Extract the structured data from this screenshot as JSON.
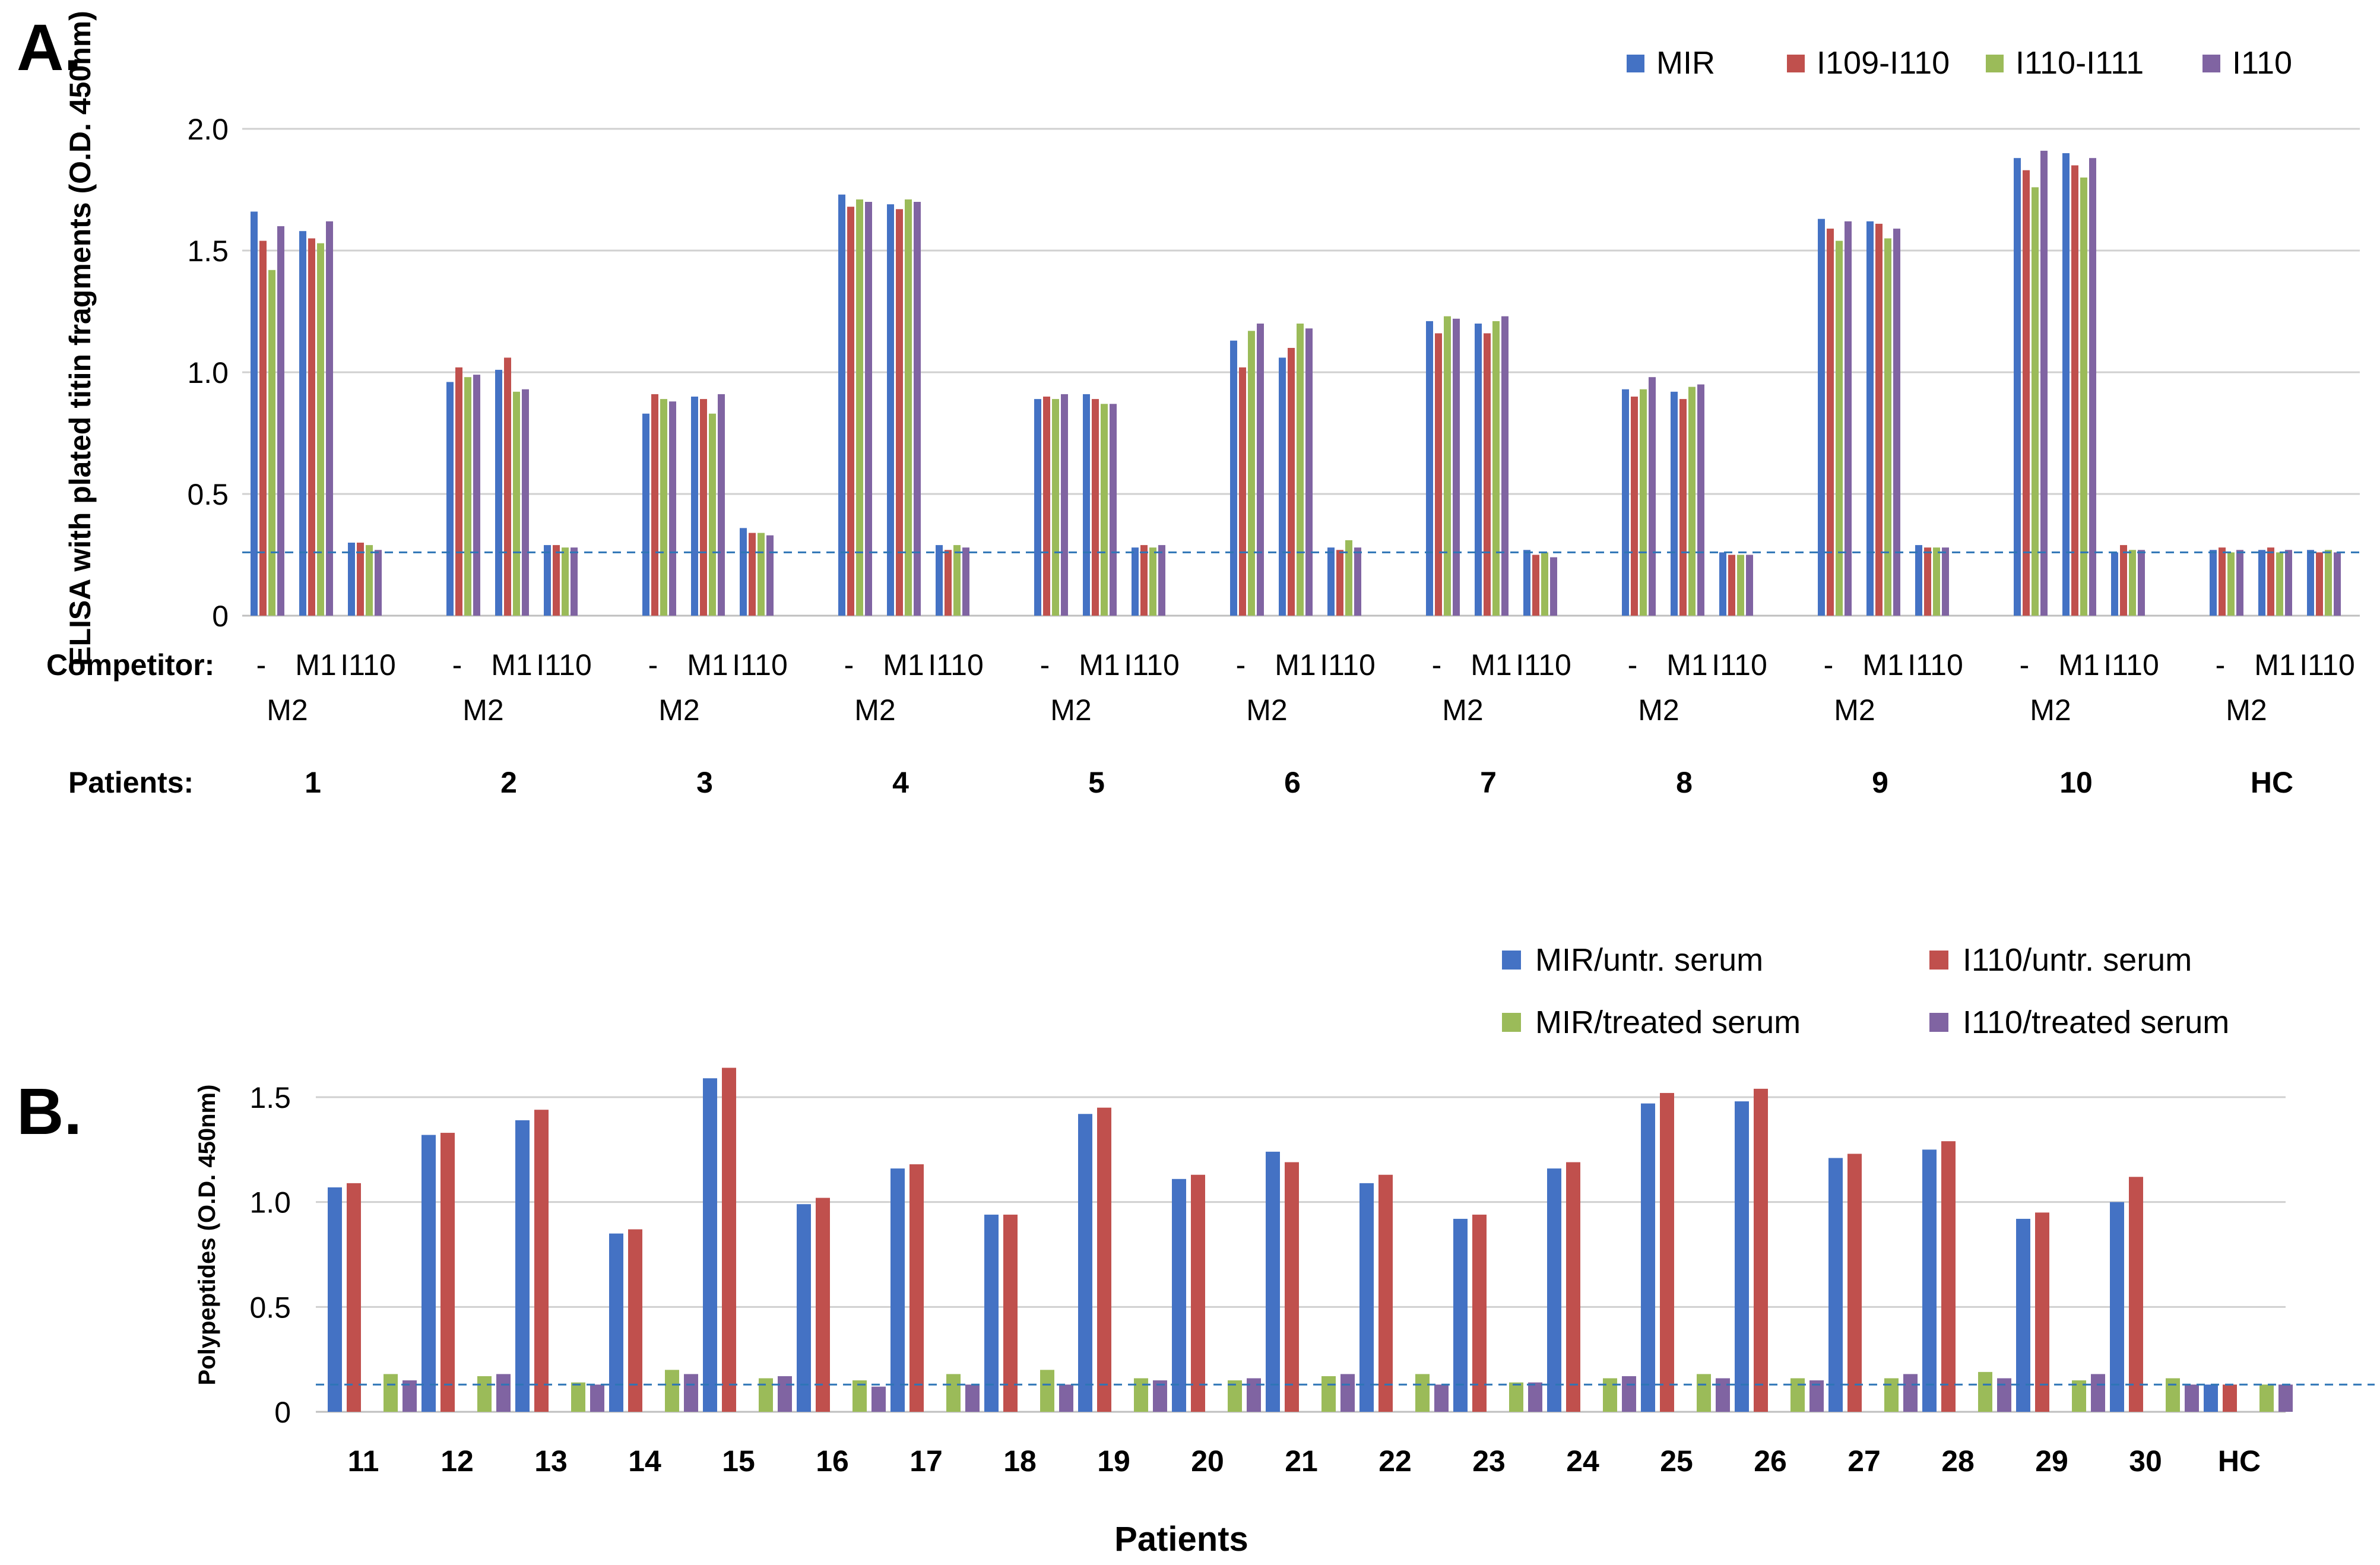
{
  "chart_data": [
    {
      "panel": "A.",
      "type": "bar",
      "ylabel": "ELISA with plated titin fragments (O.D. 450nm)",
      "ylim": [
        0,
        2.0
      ],
      "yticks": [
        "2.0",
        "1.5",
        "1.0",
        "0.5",
        "0"
      ],
      "grid": true,
      "legend_position": "top-right",
      "cutoff": 0.26,
      "competitor_label": "Competitor:",
      "patients_label": "Patients:",
      "competitor_top": [
        "-",
        "M1",
        "I110"
      ],
      "competitor_bottom": "M2",
      "series": [
        {
          "name": "MIR",
          "color": "#4472C4"
        },
        {
          "name": "I109-I110",
          "color": "#C0504D"
        },
        {
          "name": "I110-I111",
          "color": "#9BBB59"
        },
        {
          "name": "I110",
          "color": "#8064A2"
        }
      ],
      "groups": [
        {
          "patient": "1",
          "bars": [
            [
              1.66,
              1.54,
              1.42,
              1.6
            ],
            [
              1.58,
              1.55,
              1.53,
              1.62
            ],
            [
              0.3,
              0.3,
              0.29,
              0.27
            ]
          ]
        },
        {
          "patient": "2",
          "bars": [
            [
              0.96,
              1.02,
              0.98,
              0.99
            ],
            [
              1.01,
              1.06,
              0.92,
              0.93
            ],
            [
              0.29,
              0.29,
              0.28,
              0.28
            ]
          ]
        },
        {
          "patient": "3",
          "bars": [
            [
              0.83,
              0.91,
              0.89,
              0.88
            ],
            [
              0.9,
              0.89,
              0.83,
              0.91
            ],
            [
              0.36,
              0.34,
              0.34,
              0.33
            ]
          ]
        },
        {
          "patient": "4",
          "bars": [
            [
              1.73,
              1.68,
              1.71,
              1.7
            ],
            [
              1.69,
              1.67,
              1.71,
              1.7
            ],
            [
              0.29,
              0.27,
              0.29,
              0.28
            ]
          ]
        },
        {
          "patient": "5",
          "bars": [
            [
              0.89,
              0.9,
              0.89,
              0.91
            ],
            [
              0.91,
              0.89,
              0.87,
              0.87
            ],
            [
              0.28,
              0.29,
              0.28,
              0.29
            ]
          ]
        },
        {
          "patient": "6",
          "bars": [
            [
              1.13,
              1.02,
              1.17,
              1.2
            ],
            [
              1.06,
              1.1,
              1.2,
              1.18
            ],
            [
              0.28,
              0.27,
              0.31,
              0.28
            ]
          ]
        },
        {
          "patient": "7",
          "bars": [
            [
              1.21,
              1.16,
              1.23,
              1.22
            ],
            [
              1.2,
              1.16,
              1.21,
              1.23
            ],
            [
              0.27,
              0.25,
              0.26,
              0.24
            ]
          ]
        },
        {
          "patient": "8",
          "bars": [
            [
              0.93,
              0.9,
              0.93,
              0.98
            ],
            [
              0.92,
              0.89,
              0.94,
              0.95
            ],
            [
              0.26,
              0.25,
              0.25,
              0.25
            ]
          ]
        },
        {
          "patient": "9",
          "bars": [
            [
              1.63,
              1.59,
              1.54,
              1.62
            ],
            [
              1.62,
              1.61,
              1.55,
              1.59
            ],
            [
              0.29,
              0.28,
              0.28,
              0.28
            ]
          ]
        },
        {
          "patient": "10",
          "bars": [
            [
              1.88,
              1.83,
              1.76,
              1.91
            ],
            [
              1.9,
              1.85,
              1.8,
              1.88
            ],
            [
              0.26,
              0.29,
              0.27,
              0.27
            ]
          ]
        },
        {
          "patient": "HC",
          "bars": [
            [
              0.27,
              0.28,
              0.26,
              0.27
            ],
            [
              0.27,
              0.28,
              0.26,
              0.27
            ],
            [
              0.27,
              0.26,
              0.27,
              0.26
            ]
          ]
        }
      ]
    },
    {
      "panel": "B.",
      "type": "bar",
      "ylabel": "Polypeptides (O.D. 450nm)",
      "xlabel": "Patients",
      "ylim": [
        0,
        1.5
      ],
      "yticks": [
        "1.5",
        "1.0",
        "0.5",
        "0"
      ],
      "grid": true,
      "legend_position": "top-right",
      "cutoff": 0.13,
      "categories": [
        "11",
        "12",
        "13",
        "14",
        "15",
        "16",
        "17",
        "18",
        "19",
        "20",
        "21",
        "22",
        "23",
        "24",
        "25",
        "26",
        "27",
        "28",
        "29",
        "30",
        "HC"
      ],
      "series": [
        {
          "name": "MIR/untr. serum",
          "color": "#4472C4",
          "values": [
            1.07,
            1.32,
            1.39,
            0.85,
            1.59,
            0.99,
            1.16,
            0.94,
            1.42,
            1.11,
            1.24,
            1.09,
            0.92,
            1.16,
            1.47,
            1.48,
            1.21,
            1.25,
            0.92,
            1.0,
            0.13
          ]
        },
        {
          "name": "I110/untr. serum",
          "color": "#C0504D",
          "values": [
            1.09,
            1.33,
            1.44,
            0.87,
            1.64,
            1.02,
            1.18,
            0.94,
            1.45,
            1.13,
            1.19,
            1.13,
            0.94,
            1.19,
            1.52,
            1.54,
            1.23,
            1.29,
            0.95,
            1.12,
            0.13
          ]
        },
        {
          "name": "MIR/treated serum",
          "color": "#9BBB59",
          "values": [
            0.18,
            0.17,
            0.14,
            0.2,
            0.16,
            0.15,
            0.18,
            0.2,
            0.16,
            0.15,
            0.17,
            0.18,
            0.14,
            0.16,
            0.18,
            0.16,
            0.16,
            0.19,
            0.15,
            0.16,
            0.13
          ]
        },
        {
          "name": "I110/treated serum",
          "color": "#8064A2",
          "values": [
            0.15,
            0.18,
            0.13,
            0.18,
            0.17,
            0.12,
            0.13,
            0.13,
            0.15,
            0.16,
            0.18,
            0.13,
            0.14,
            0.17,
            0.16,
            0.15,
            0.18,
            0.16,
            0.18,
            0.13,
            0.13
          ]
        }
      ]
    }
  ]
}
